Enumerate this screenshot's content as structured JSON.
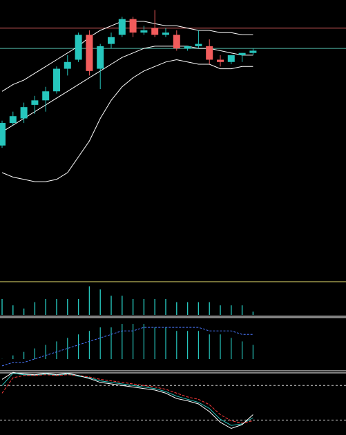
{
  "colors": {
    "background": "#000000",
    "up": "#26c6bd",
    "down": "#f25c5c",
    "band": "#ffffff",
    "resistance": "#e06060",
    "current_price": "#4fb8a8",
    "separator": "#ffffff",
    "divider_top": "#e8e070",
    "macd_signal": "#4a78ff",
    "kdj_k": "#26c6bd",
    "kdj_d": "#ff3a3a",
    "kdj_j": "#ffffff",
    "kdj_levels": "#ffffff"
  },
  "chart_data": [
    {
      "type": "candlestick",
      "panel": "price",
      "ylim": [
        0,
        100
      ],
      "candles": [
        {
          "o": 38,
          "h": 49,
          "l": 37,
          "c": 48
        },
        {
          "o": 48,
          "h": 53,
          "l": 47,
          "c": 51
        },
        {
          "o": 50,
          "h": 57,
          "l": 48,
          "c": 55
        },
        {
          "o": 56,
          "h": 60,
          "l": 52,
          "c": 58
        },
        {
          "o": 58,
          "h": 64,
          "l": 53,
          "c": 62
        },
        {
          "o": 62,
          "h": 73,
          "l": 61,
          "c": 72
        },
        {
          "o": 72,
          "h": 78,
          "l": 69,
          "c": 75
        },
        {
          "o": 76,
          "h": 88,
          "l": 75,
          "c": 87
        },
        {
          "o": 87,
          "h": 89,
          "l": 69,
          "c": 71
        },
        {
          "o": 72,
          "h": 83,
          "l": 63,
          "c": 82
        },
        {
          "o": 83,
          "h": 88,
          "l": 81,
          "c": 86
        },
        {
          "o": 87,
          "h": 95,
          "l": 86,
          "c": 94
        },
        {
          "o": 94,
          "h": 95,
          "l": 86,
          "c": 88
        },
        {
          "o": 88,
          "h": 91,
          "l": 87,
          "c": 89
        },
        {
          "o": 90,
          "h": 98,
          "l": 86,
          "c": 87
        },
        {
          "o": 87,
          "h": 90,
          "l": 86,
          "c": 88
        },
        {
          "o": 87,
          "h": 89,
          "l": 80,
          "c": 81
        },
        {
          "o": 81,
          "h": 82,
          "l": 80,
          "c": 82
        },
        {
          "o": 82,
          "h": 89,
          "l": 81,
          "c": 83
        },
        {
          "o": 82,
          "h": 85,
          "l": 74,
          "c": 76
        },
        {
          "o": 76,
          "h": 78,
          "l": 73,
          "c": 75
        },
        {
          "o": 75,
          "h": 78,
          "l": 74,
          "c": 78
        },
        {
          "o": 78,
          "h": 79,
          "l": 75,
          "c": 79
        },
        {
          "o": 79,
          "h": 81,
          "l": 78,
          "c": 80
        }
      ],
      "bands": {
        "upper": [
          62,
          65,
          67,
          70,
          73,
          76,
          79,
          82,
          86,
          89,
          91,
          93,
          93,
          93,
          92,
          91,
          91,
          90,
          89,
          89,
          88,
          88,
          87,
          87
        ],
        "middle": [
          44,
          47,
          50,
          53,
          56,
          59,
          62,
          65,
          68,
          71,
          74,
          77,
          79,
          81,
          82,
          82,
          82,
          82,
          81,
          81,
          80,
          79,
          78,
          78
        ],
        "lower": [
          26,
          24,
          23,
          22,
          22,
          23,
          26,
          33,
          40,
          50,
          58,
          64,
          68,
          71,
          73,
          75,
          76,
          75,
          74,
          74,
          72,
          72,
          73,
          73
        ]
      },
      "levels": {
        "resistance": 90,
        "current": 81
      }
    },
    {
      "type": "bar",
      "panel": "volume",
      "values": [
        5,
        3,
        2,
        4,
        5,
        5,
        5,
        5,
        9,
        8,
        6,
        6,
        5,
        5,
        5,
        5,
        4,
        4,
        4,
        4,
        3,
        3,
        3,
        1
      ],
      "ylim": [
        0,
        10
      ]
    },
    {
      "type": "bar",
      "panel": "macd",
      "values": [
        3,
        4,
        5,
        6,
        7,
        8,
        9,
        10,
        11,
        12,
        12,
        13,
        13,
        13,
        12,
        12,
        11,
        11,
        11,
        10,
        10,
        9,
        8,
        7
      ],
      "signal": [
        1,
        2,
        2,
        3,
        4,
        5,
        6,
        7,
        8,
        9,
        10,
        11,
        11,
        12,
        12,
        12,
        12,
        12,
        12,
        11,
        11,
        11,
        10,
        10
      ],
      "ylim": [
        0,
        14
      ]
    },
    {
      "type": "line",
      "panel": "kdj",
      "series": [
        {
          "key": "k",
          "values": [
            80,
            96,
            94,
            93,
            95,
            93,
            95,
            92,
            90,
            86,
            84,
            82,
            80,
            78,
            76,
            72,
            66,
            62,
            58,
            50,
            36,
            28,
            30,
            38
          ]
        },
        {
          "key": "d",
          "values": [
            70,
            90,
            93,
            93,
            94,
            93,
            94,
            93,
            91,
            88,
            86,
            84,
            82,
            80,
            78,
            75,
            70,
            65,
            62,
            55,
            42,
            34,
            31,
            34
          ]
        },
        {
          "key": "j",
          "values": [
            88,
            97,
            95,
            94,
            96,
            94,
            96,
            93,
            89,
            84,
            82,
            80,
            78,
            76,
            74,
            70,
            63,
            60,
            56,
            46,
            32,
            24,
            29,
            42
          ]
        }
      ],
      "ylim": [
        20,
        100
      ],
      "levels": [
        80,
        35
      ]
    }
  ]
}
